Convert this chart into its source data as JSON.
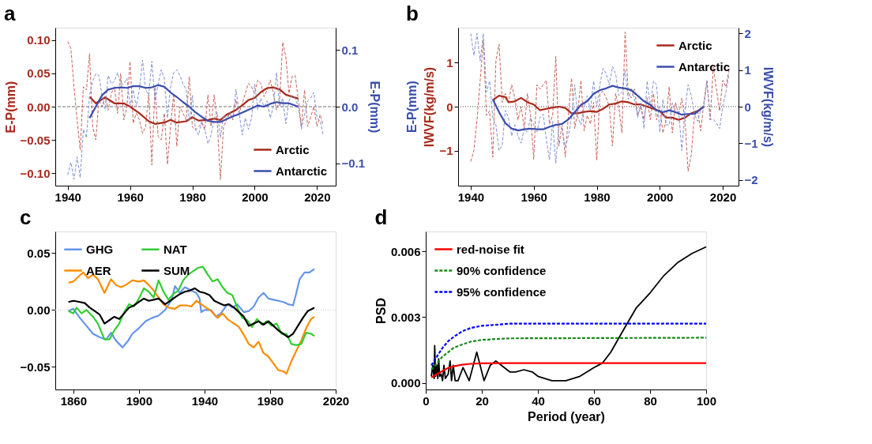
{
  "chart_data": [
    {
      "type": "line",
      "title": "a",
      "ylabel": "E-P(mm)",
      "y2label": "E-P(mm)",
      "xlim": [
        1936,
        2026
      ],
      "xticks": [
        1940,
        1960,
        1980,
        2000,
        2020
      ],
      "ylim": [
        -0.119,
        0.119
      ],
      "yticks": [
        {
          "value": -0.1,
          "label": "−0.10"
        },
        {
          "value": -0.05,
          "label": "−0.05"
        },
        {
          "value": 0,
          "label": "0.00"
        },
        {
          "value": 0.05,
          "label": "0.05"
        },
        {
          "value": 0.1,
          "label": "0.10"
        }
      ],
      "y2lim": [
        -0.139,
        0.139
      ],
      "y2ticks": [
        {
          "value": -0.1,
          "label": "−0.1"
        },
        {
          "value": 0,
          "label": "0.0"
        },
        {
          "value": 0.1,
          "label": "0.1"
        }
      ],
      "ref_lines": [
        {
          "axis": "y",
          "value": 0,
          "color": "#707070",
          "line_style": "dashed"
        }
      ],
      "legend": "bottom right",
      "marker": "none",
      "series": [
        {
          "color": "#c9625a",
          "line_style": "dashed",
          "x": [
            1940,
            1941,
            1942,
            1943,
            1944,
            1945,
            1946,
            1947,
            1948,
            1949,
            1950,
            1951,
            1952,
            1953,
            1954,
            1955,
            1956,
            1957,
            1958,
            1959,
            1960,
            1961,
            1962,
            1963,
            1964,
            1965,
            1966,
            1967,
            1968,
            1969,
            1970,
            1971,
            1972,
            1973,
            1974,
            1975,
            1976,
            1977,
            1978,
            1979,
            1980,
            1981,
            1982,
            1983,
            1984,
            1985,
            1986,
            1987,
            1988,
            1989,
            1990,
            1991,
            1992,
            1993,
            1994,
            1995,
            1996,
            1997,
            1998,
            1999,
            2000,
            2001,
            2002,
            2003,
            2004,
            2005,
            2006,
            2007,
            2008,
            2009,
            2010,
            2011,
            2012,
            2013,
            2014,
            2015,
            2016,
            2017,
            2018,
            2019,
            2020,
            2021,
            2022
          ],
          "values": [
            0.098,
            0.088,
            0.03,
            -0.02,
            -0.065,
            0.03,
            0.025,
            0.08,
            -0.03,
            -0.05,
            0.01,
            0.0,
            0.015,
            -0.005,
            0.02,
            0.03,
            -0.01,
            0.05,
            -0.02,
            0.0,
            0.068,
            -0.025,
            -0.01,
            -0.02,
            -0.04,
            -0.03,
            0.02,
            -0.088,
            0.03,
            -0.045,
            -0.05,
            -0.01,
            -0.087,
            -0.03,
            0.02,
            -0.06,
            0.0,
            -0.01,
            -0.02,
            0.045,
            -0.03,
            -0.035,
            -0.03,
            -0.025,
            -0.035,
            0.018,
            -0.03,
            0.018,
            -0.025,
            -0.11,
            -0.03,
            -0.02,
            -0.01,
            -0.02,
            0.01,
            -0.01,
            0.005,
            0.02,
            0.035,
            0.03,
            0.02,
            0.04,
            0.035,
            0.015,
            0.025,
            0.04,
            0.02,
            -0.005,
            0.01,
            0.097,
            0.075,
            0.02,
            0.045,
            0.047,
            0.01,
            -0.03,
            0.025,
            -0.03,
            -0.015,
            0.0,
            -0.03,
            -0.012,
            -0.028
          ]
        },
        {
          "color": "#7f92d4",
          "line_style": "dashed",
          "axis": "y2",
          "x": [
            1940,
            1941,
            1942,
            1943,
            1944,
            1945,
            1946,
            1947,
            1948,
            1949,
            1950,
            1951,
            1952,
            1953,
            1954,
            1955,
            1956,
            1957,
            1958,
            1959,
            1960,
            1961,
            1962,
            1963,
            1964,
            1965,
            1966,
            1967,
            1968,
            1969,
            1970,
            1971,
            1972,
            1973,
            1974,
            1975,
            1976,
            1977,
            1978,
            1979,
            1980,
            1981,
            1982,
            1983,
            1984,
            1985,
            1986,
            1987,
            1988,
            1989,
            1990,
            1991,
            1992,
            1993,
            1994,
            1995,
            1996,
            1997,
            1998,
            1999,
            2000,
            2001,
            2002,
            2003,
            2004,
            2005,
            2006,
            2007,
            2008,
            2009,
            2010,
            2011,
            2012,
            2013,
            2014,
            2015,
            2016,
            2017,
            2018,
            2019,
            2020,
            2021,
            2022
          ],
          "values": [
            -0.12,
            -0.098,
            -0.128,
            -0.088,
            -0.125,
            -0.04,
            -0.055,
            0.02,
            0.045,
            0.058,
            0.055,
            0.02,
            -0.005,
            0.055,
            0.04,
            0.045,
            0.06,
            0.04,
            0.04,
            0.05,
            0.0,
            0.03,
            0.0,
            0.03,
            0.082,
            0.03,
            0.02,
            0.08,
            0.01,
            0.04,
            0.065,
            0.05,
            -0.02,
            0.035,
            0.06,
            0.065,
            0.055,
            0.04,
            0.03,
            -0.025,
            0.02,
            -0.04,
            -0.05,
            -0.025,
            -0.04,
            -0.065,
            -0.05,
            -0.02,
            -0.01,
            -0.055,
            -0.015,
            -0.02,
            -0.01,
            -0.02,
            0.03,
            -0.01,
            -0.05,
            -0.02,
            -0.04,
            -0.02,
            0.04,
            -0.005,
            0.015,
            0.0,
            0.01,
            -0.02,
            0.0,
            0.06,
            0.0,
            0.015,
            -0.03,
            0.01,
            0.02,
            0.015,
            0.0,
            -0.04,
            -0.015,
            0.01,
            0.015,
            0.025,
            -0.02,
            -0.025,
            -0.05
          ]
        },
        {
          "name": "Arctic",
          "color": "#a82a1c",
          "line_style": "solid",
          "x": [
            1947,
            1949,
            1952,
            1955,
            1958,
            1960,
            1963,
            1966,
            1968,
            1971,
            1973,
            1975,
            1978,
            1980,
            1982,
            1985,
            1987,
            1989,
            1991,
            1994,
            1996,
            1998,
            2000,
            2002,
            2004,
            2006,
            2008,
            2010,
            2012,
            2014
          ],
          "values": [
            0.015,
            0.005,
            0.014,
            0.005,
            0.005,
            0.0,
            -0.01,
            -0.022,
            -0.026,
            -0.024,
            -0.02,
            -0.024,
            -0.022,
            -0.016,
            -0.021,
            -0.02,
            -0.018,
            -0.02,
            -0.012,
            -0.005,
            0.002,
            0.01,
            0.013,
            0.022,
            0.028,
            0.029,
            0.026,
            0.018,
            0.015,
            0.012
          ]
        },
        {
          "name": "Antarctic",
          "color": "#3a4fac",
          "line_style": "solid",
          "axis": "y2",
          "x": [
            1947,
            1949,
            1951,
            1953,
            1955,
            1957,
            1959,
            1961,
            1963,
            1965,
            1967,
            1969,
            1971,
            1973,
            1975,
            1977,
            1979,
            1981,
            1983,
            1985,
            1987,
            1989,
            1991,
            1993,
            1995,
            1997,
            1999,
            2001,
            2003,
            2005,
            2007,
            2009,
            2011,
            2014
          ],
          "values": [
            -0.02,
            0.0,
            0.02,
            0.03,
            0.033,
            0.034,
            0.033,
            0.036,
            0.036,
            0.033,
            0.034,
            0.038,
            0.035,
            0.025,
            0.017,
            0.008,
            0.0,
            -0.01,
            -0.018,
            -0.025,
            -0.027,
            -0.027,
            -0.022,
            -0.017,
            -0.013,
            -0.008,
            -0.003,
            0.002,
            0.0,
            0.005,
            0.008,
            0.006,
            0.006,
            0.0
          ]
        }
      ]
    },
    {
      "type": "line",
      "title": "b",
      "ylabel": "IWVF(kg/m/s)",
      "y2label": "IWVF(kg/m/s)",
      "annotations": [
        "E-P(mm)"
      ],
      "xlim": [
        1936,
        2025
      ],
      "xticks": [
        1940,
        1960,
        1980,
        2000,
        2020
      ],
      "ylim": [
        -1.8,
        1.8
      ],
      "yticks": [
        {
          "value": -1,
          "label": "−1"
        },
        0,
        1
      ],
      "y2lim": [
        -2.16,
        2.16
      ],
      "y2ticks": [
        {
          "value": -2,
          "label": "−2"
        },
        {
          "value": -1,
          "label": "−1"
        },
        0,
        1,
        2
      ],
      "ref_lines": [
        {
          "axis": "y",
          "value": 0,
          "color": "#404040",
          "line_style": "dotted"
        }
      ],
      "legend": "top right",
      "marker": "none",
      "series": [
        {
          "color": "#c9625a",
          "line_style": "dashed",
          "x": [
            1940,
            1941,
            1942,
            1943,
            1944,
            1945,
            1946,
            1947,
            1948,
            1949,
            1950,
            1951,
            1952,
            1953,
            1954,
            1955,
            1956,
            1957,
            1958,
            1959,
            1960,
            1961,
            1962,
            1963,
            1964,
            1965,
            1966,
            1967,
            1968,
            1969,
            1970,
            1971,
            1972,
            1973,
            1974,
            1975,
            1976,
            1977,
            1978,
            1979,
            1980,
            1981,
            1982,
            1983,
            1984,
            1985,
            1986,
            1987,
            1988,
            1989,
            1990,
            1991,
            1992,
            1993,
            1994,
            1995,
            1996,
            1997,
            1998,
            1999,
            2000,
            2001,
            2002,
            2003,
            2004,
            2005,
            2006,
            2007,
            2008,
            2009,
            2010,
            2011,
            2012,
            2013,
            2014,
            2015,
            2016,
            2017,
            2018,
            2019,
            2020,
            2021,
            2022
          ],
          "values": [
            -1.25,
            -1.0,
            -0.3,
            0.6,
            1.5,
            -0.2,
            -0.1,
            -1.15,
            1.05,
            1.42,
            0.1,
            0.3,
            0.1,
            0.5,
            0.2,
            -0.3,
            0.0,
            -0.5,
            0.3,
            -0.2,
            -1.2,
            0.5,
            0.4,
            0.5,
            0.6,
            -0.4,
            -0.2,
            1.15,
            -0.9,
            -0.4,
            -1.15,
            -0.2,
            0.65,
            -0.5,
            -0.1,
            0.6,
            -0.55,
            -0.2,
            -0.4,
            0.1,
            -1.22,
            0.3,
            0.35,
            0.2,
            0.0,
            -0.9,
            0.3,
            0.0,
            -0.6,
            1.7,
            0.3,
            0.2,
            0.4,
            -0.2,
            0.0,
            -0.3,
            0.2,
            -0.3,
            0.3,
            -0.3,
            0.0,
            -0.6,
            -0.3,
            0.45,
            -0.6,
            0.1,
            -0.2,
            0.2,
            -0.3,
            -1.47,
            -1.1,
            -0.2,
            -0.1,
            -0.55,
            0.1,
            0.6,
            -0.3,
            0.9,
            0.4,
            -0.1,
            0.6,
            0.45,
            0.85
          ]
        },
        {
          "color": "#7f92d4",
          "line_style": "dashed",
          "axis": "y2",
          "x": [
            1940,
            1941,
            1942,
            1943,
            1944,
            1945,
            1946,
            1947,
            1948,
            1949,
            1950,
            1951,
            1952,
            1953,
            1954,
            1955,
            1956,
            1957,
            1958,
            1959,
            1960,
            1961,
            1962,
            1963,
            1964,
            1965,
            1966,
            1967,
            1968,
            1969,
            1970,
            1971,
            1972,
            1973,
            1974,
            1975,
            1976,
            1977,
            1978,
            1979,
            1980,
            1981,
            1982,
            1983,
            1984,
            1985,
            1986,
            1987,
            1988,
            1989,
            1990,
            1991,
            1992,
            1993,
            1994,
            1995,
            1996,
            1997,
            1998,
            1999,
            2000,
            2001,
            2002,
            2003,
            2004,
            2005,
            2006,
            2007,
            2008,
            2009,
            2010,
            2011,
            2012,
            2013,
            2014,
            2015,
            2016,
            2017,
            2018,
            2019,
            2020,
            2021,
            2022
          ],
          "values": [
            2.0,
            1.4,
            2.0,
            1.25,
            2.0,
            0.4,
            0.7,
            -0.3,
            -0.5,
            -1.2,
            -1.05,
            -0.1,
            -0.3,
            -0.8,
            -0.5,
            -0.8,
            -1.0,
            -0.6,
            -0.7,
            -0.3,
            -0.5,
            -0.7,
            -0.3,
            -0.2,
            -0.9,
            -1.45,
            -0.4,
            -1.55,
            -0.5,
            -0.6,
            -1.1,
            -0.8,
            -0.3,
            0.6,
            -0.3,
            -0.5,
            0.0,
            0.3,
            -0.1,
            0.7,
            0.0,
            0.6,
            1.05,
            0.9,
            0.6,
            1.1,
            0.9,
            0.3,
            0.4,
            1.0,
            0.2,
            0.5,
            0.2,
            -0.3,
            0.1,
            -0.6,
            0.7,
            0.0,
            0.7,
            0.6,
            -0.7,
            0.2,
            -0.5,
            -0.5,
            0.1,
            -0.2,
            -0.1,
            -1.2,
            -0.1,
            0.6,
            0.3,
            -0.2,
            -0.4,
            -0.1,
            0.0,
            0.7,
            -0.35,
            -0.35,
            -0.45,
            -0.6,
            0.0,
            0.4,
            0.9
          ]
        },
        {
          "name": "Arctic",
          "color": "#a82a1c",
          "line_style": "solid",
          "x": [
            1947,
            1949,
            1951,
            1952,
            1954,
            1956,
            1958,
            1960,
            1962,
            1964,
            1966,
            1968,
            1970,
            1972,
            1974,
            1976,
            1978,
            1980,
            1982,
            1984,
            1986,
            1988,
            1990,
            1992,
            1994,
            1996,
            1998,
            2000,
            2002,
            2004,
            2006,
            2008,
            2010,
            2012,
            2014
          ],
          "values": [
            0.15,
            0.25,
            0.22,
            0.1,
            0.12,
            0.2,
            0.1,
            0.05,
            -0.08,
            -0.05,
            -0.02,
            0.0,
            -0.03,
            -0.15,
            -0.15,
            -0.12,
            -0.1,
            -0.12,
            -0.05,
            0.05,
            0.07,
            0.12,
            0.1,
            0.05,
            0.05,
            0.0,
            -0.05,
            -0.1,
            -0.25,
            -0.25,
            -0.3,
            -0.25,
            -0.15,
            -0.1,
            0.0
          ]
        },
        {
          "name": "Antarctic",
          "color": "#3a4fac",
          "line_style": "solid",
          "axis": "y2",
          "x": [
            1947,
            1949,
            1951,
            1953,
            1955,
            1957,
            1959,
            1961,
            1963,
            1965,
            1967,
            1969,
            1971,
            1973,
            1975,
            1977,
            1979,
            1981,
            1983,
            1985,
            1987,
            1989,
            1991,
            1993,
            1995,
            1997,
            1999,
            2001,
            2003,
            2005,
            2007,
            2009,
            2011,
            2014
          ],
          "values": [
            0.2,
            -0.15,
            -0.45,
            -0.6,
            -0.65,
            -0.62,
            -0.6,
            -0.62,
            -0.62,
            -0.55,
            -0.5,
            -0.47,
            -0.35,
            -0.15,
            0.05,
            0.15,
            0.35,
            0.45,
            0.5,
            0.57,
            0.52,
            0.5,
            0.45,
            0.3,
            0.15,
            0.05,
            -0.1,
            -0.15,
            -0.1,
            -0.15,
            -0.22,
            -0.2,
            -0.2,
            0.0
          ]
        }
      ]
    },
    {
      "type": "line",
      "title": "c",
      "xlim": [
        1849,
        2020
      ],
      "xticks": [
        1860,
        1900,
        1940,
        1980,
        2020
      ],
      "ylim": [
        -0.07,
        0.069
      ],
      "yticks": [
        {
          "value": -0.05,
          "label": "−0.05"
        },
        {
          "value": 0,
          "label": "0.00"
        },
        {
          "value": 0.05,
          "label": "0.05"
        }
      ],
      "ref_lines": [
        {
          "axis": "y",
          "value": 0,
          "color": "#d0d0d0",
          "line_style": "dotted"
        }
      ],
      "legend": "top left",
      "marker": "none",
      "series": [
        {
          "name": "GHG",
          "color": "#6495ed",
          "line_style": "solid",
          "x": [
            1857,
            1860,
            1864,
            1868,
            1872,
            1876,
            1880,
            1883,
            1886,
            1890,
            1893,
            1896,
            1900,
            1904,
            1908,
            1912,
            1916,
            1920,
            1922,
            1925,
            1928,
            1932,
            1935,
            1937,
            1938,
            1940,
            1944,
            1947,
            1950,
            1954,
            1957,
            1960,
            1964,
            1967,
            1970,
            1973,
            1976,
            1979,
            1982,
            1985,
            1988,
            1991,
            1994,
            1996,
            1998,
            2001,
            2004,
            2007
          ],
          "values": [
            -0.001,
            0.001,
            -0.007,
            -0.014,
            -0.021,
            -0.024,
            -0.026,
            -0.02,
            -0.027,
            -0.033,
            -0.028,
            -0.021,
            -0.016,
            -0.01,
            -0.007,
            -0.005,
            0.0,
            0.009,
            0.021,
            0.015,
            0.02,
            0.017,
            0.015,
            0.01,
            -0.002,
            0.0,
            0.0,
            -0.006,
            -0.003,
            0.005,
            0.002,
            0.005,
            -0.002,
            -0.001,
            0.003,
            0.011,
            0.015,
            0.01,
            0.009,
            0.008,
            0.007,
            0.005,
            0.004,
            0.015,
            0.027,
            0.033,
            0.033,
            0.036
          ]
        },
        {
          "name": "AER",
          "color": "#ff8c00",
          "line_style": "solid",
          "x": [
            1857,
            1860,
            1863,
            1866,
            1869,
            1872,
            1875,
            1879,
            1883,
            1886,
            1889,
            1892,
            1896,
            1900,
            1903,
            1906,
            1909,
            1912,
            1915,
            1918,
            1922,
            1925,
            1929,
            1932,
            1935,
            1938,
            1941,
            1944,
            1948,
            1951,
            1954,
            1958,
            1961,
            1964,
            1967,
            1970,
            1973,
            1976,
            1979,
            1982,
            1985,
            1988,
            1990,
            1993,
            1996,
            1999,
            2002,
            2005,
            2007
          ],
          "values": [
            0.024,
            0.025,
            0.029,
            0.033,
            0.028,
            0.031,
            0.027,
            0.015,
            0.027,
            0.022,
            0.02,
            0.022,
            0.026,
            0.025,
            0.026,
            0.022,
            0.017,
            0.011,
            0.005,
            0.002,
            0.001,
            0.004,
            0.004,
            0.003,
            0.008,
            0.005,
            0.002,
            -0.001,
            -0.007,
            -0.003,
            -0.008,
            -0.012,
            -0.015,
            -0.022,
            -0.03,
            -0.033,
            -0.028,
            -0.038,
            -0.041,
            -0.047,
            -0.053,
            -0.054,
            -0.056,
            -0.045,
            -0.036,
            -0.027,
            -0.016,
            -0.008,
            -0.006
          ]
        },
        {
          "name": "NAT",
          "color": "#32cd32",
          "line_style": "solid",
          "x": [
            1857,
            1860,
            1862,
            1865,
            1868,
            1872,
            1875,
            1879,
            1882,
            1885,
            1888,
            1891,
            1894,
            1897,
            1900,
            1903,
            1906,
            1909,
            1912,
            1915,
            1918,
            1921,
            1924,
            1927,
            1930,
            1933,
            1936,
            1939,
            1942,
            1945,
            1948,
            1951,
            1954,
            1957,
            1960,
            1963,
            1966,
            1969,
            1972,
            1975,
            1978,
            1981,
            1984,
            1987,
            1990,
            1993,
            1996,
            1999,
            2002,
            2005,
            2007
          ],
          "values": [
            -0.001,
            -0.003,
            0.002,
            -0.003,
            0.0,
            -0.006,
            -0.012,
            -0.026,
            -0.026,
            -0.018,
            -0.012,
            -0.002,
            0.005,
            0.003,
            0.01,
            0.019,
            0.016,
            0.011,
            0.026,
            0.016,
            0.009,
            0.014,
            0.017,
            0.026,
            0.031,
            0.034,
            0.037,
            0.038,
            0.031,
            0.025,
            0.027,
            0.02,
            0.015,
            0.013,
            0.002,
            -0.007,
            -0.009,
            -0.015,
            -0.008,
            -0.013,
            -0.01,
            -0.014,
            -0.012,
            -0.021,
            -0.021,
            -0.03,
            -0.031,
            -0.03,
            -0.02,
            -0.021,
            -0.023
          ]
        },
        {
          "name": "SUM",
          "color": "#000000",
          "line_style": "solid",
          "x": [
            1857,
            1860,
            1864,
            1867,
            1870,
            1873,
            1876,
            1879,
            1882,
            1885,
            1888,
            1891,
            1894,
            1897,
            1900,
            1903,
            1906,
            1909,
            1912,
            1916,
            1919,
            1922,
            1925,
            1928,
            1931,
            1934,
            1937,
            1940,
            1943,
            1946,
            1949,
            1952,
            1955,
            1958,
            1961,
            1964,
            1967,
            1970,
            1973,
            1976,
            1979,
            1982,
            1985,
            1988,
            1991,
            1994,
            1997,
            2000,
            2003,
            2007
          ],
          "values": [
            0.007,
            0.008,
            0.007,
            0.006,
            0.002,
            -0.001,
            -0.004,
            -0.012,
            -0.009,
            -0.006,
            -0.008,
            -0.003,
            0.002,
            0.004,
            0.007,
            0.01,
            0.008,
            0.009,
            0.01,
            0.005,
            0.008,
            0.011,
            0.014,
            0.016,
            0.017,
            0.019,
            0.016,
            0.015,
            0.013,
            0.008,
            0.006,
            0.004,
            0.005,
            0.002,
            -0.002,
            -0.006,
            -0.014,
            -0.012,
            -0.01,
            -0.013,
            -0.01,
            -0.014,
            -0.018,
            -0.021,
            -0.024,
            -0.021,
            -0.014,
            -0.007,
            -0.001,
            0.002
          ]
        }
      ]
    },
    {
      "type": "line",
      "title": "d",
      "xlabel": "Period (year)",
      "ylabel": "PSD",
      "xlim": [
        0,
        100
      ],
      "xticks": [
        0,
        20,
        40,
        60,
        80,
        100
      ],
      "ylim": [
        -0.0003,
        0.0069
      ],
      "yticks": [
        {
          "value": 0,
          "label": "0.000"
        },
        {
          "value": 0.003,
          "label": "0.003"
        },
        {
          "value": 0.006,
          "label": "0.006"
        }
      ],
      "legend": "top left",
      "marker": "none",
      "series": [
        {
          "color": "#000000",
          "line_style": "solid",
          "x": [
            2,
            2.5,
            3,
            3.2,
            3.5,
            4,
            4.3,
            4.6,
            5,
            5.5,
            6,
            6.5,
            7,
            8,
            8.7,
            9.2,
            9.8,
            10.5,
            11.5,
            13.3,
            15.5,
            18.2,
            20.8,
            23,
            25,
            27,
            30,
            32,
            35,
            38,
            40,
            45,
            50,
            55,
            60,
            63,
            66,
            70,
            75,
            80,
            85,
            90,
            95,
            100
          ],
          "values": [
            0.0003,
            0.0008,
            0.0002,
            0.0017,
            0.0003,
            0.0008,
            0.0002,
            0.0011,
            0.0003,
            0.0004,
            0.0001,
            0.0008,
            0.0002,
            0.0004,
            0.001,
            0.0001,
            0.0008,
            0.0001,
            0.0001,
            0.0007,
            0.0001,
            0.0014,
            0.0001,
            0.0008,
            0.001,
            0.0008,
            0.0005,
            0.0005,
            0.0006,
            0.0005,
            0.0003,
            0.0001,
            0.0001,
            0.0003,
            0.0007,
            0.0009,
            0.0014,
            0.0023,
            0.0034,
            0.0041,
            0.0049,
            0.0055,
            0.0059,
            0.0062
          ]
        },
        {
          "name": "red-noise fit",
          "color": "#ff0000",
          "line_style": "solid",
          "x": [
            2,
            4,
            6,
            8,
            10,
            13,
            16,
            20,
            30,
            100
          ],
          "values": [
            0.00025,
            0.0004,
            0.00055,
            0.00068,
            0.00076,
            0.00083,
            0.00087,
            0.00089,
            0.0009,
            0.0009
          ]
        },
        {
          "name": "90% confidence",
          "color": "#1a8a1a",
          "line_style": "dashed",
          "x": [
            2,
            4,
            6,
            8,
            10,
            13,
            16,
            20,
            25,
            30,
            100
          ],
          "values": [
            0.0006,
            0.0009,
            0.0012,
            0.0014,
            0.0016,
            0.00175,
            0.00188,
            0.00196,
            0.002,
            0.00203,
            0.00206
          ]
        },
        {
          "name": "95% confidence",
          "color": "#0000ff",
          "line_style": "dashed",
          "x": [
            2,
            4,
            6,
            8,
            10,
            13,
            16,
            20,
            25,
            30,
            100
          ],
          "values": [
            0.0008,
            0.0012,
            0.0016,
            0.0019,
            0.0021,
            0.00235,
            0.0025,
            0.0026,
            0.00265,
            0.0027,
            0.0027
          ]
        }
      ]
    }
  ]
}
